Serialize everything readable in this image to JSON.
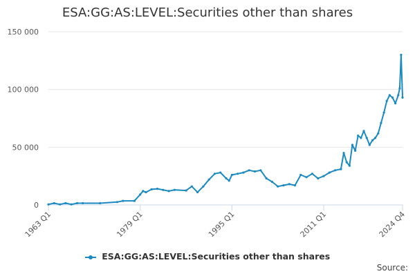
{
  "title": "ESA:GG:AS:LEVEL:Securities other than shares",
  "legend_label": "ESA:GG:AS:LEVEL:Securities other than shares",
  "source_label": "Source:",
  "colors": {
    "series": "#1b8ac2",
    "grid": "#e6e6e6",
    "axis": "#ccd6eb"
  },
  "chart_data": {
    "type": "line",
    "title": "ESA:GG:AS:LEVEL:Securities other than shares",
    "xlabel": "",
    "ylabel": "",
    "x_tick_labels": [
      "1963 Q1",
      "1979 Q1",
      "1995 Q1",
      "2011 Q1",
      "2024 Q4"
    ],
    "y_tick_labels": [
      "0",
      "50 000",
      "100 000",
      "150 000"
    ],
    "ylim": [
      0,
      150000
    ],
    "xlim": [
      "1963 Q1",
      "2024 Q4"
    ],
    "grid": true,
    "legend_position": "bottom",
    "series": [
      {
        "name": "ESA:GG:AS:LEVEL:Securities other than shares",
        "points": [
          [
            "1963 Q1",
            500
          ],
          [
            "1964 Q1",
            1500
          ],
          [
            "1965 Q1",
            500
          ],
          [
            "1966 Q1",
            1500
          ],
          [
            "1967 Q1",
            500
          ],
          [
            "1968 Q1",
            1500
          ],
          [
            "1969 Q1",
            1500
          ],
          [
            "1972 Q1",
            1500
          ],
          [
            "1975 Q1",
            2500
          ],
          [
            "1976 Q1",
            3500
          ],
          [
            "1978 Q1",
            3500
          ],
          [
            "1979 Q1",
            9000
          ],
          [
            "1979 Q3",
            12000
          ],
          [
            "1980 Q1",
            11000
          ],
          [
            "1981 Q1",
            13500
          ],
          [
            "1982 Q1",
            14000
          ],
          [
            "1983 Q1",
            13000
          ],
          [
            "1984 Q1",
            12000
          ],
          [
            "1985 Q1",
            13000
          ],
          [
            "1987 Q1",
            12500
          ],
          [
            "1988 Q1",
            16000
          ],
          [
            "1989 Q1",
            11000
          ],
          [
            "1990 Q1",
            16000
          ],
          [
            "1991 Q1",
            22000
          ],
          [
            "1992 Q1",
            27000
          ],
          [
            "1993 Q1",
            28000
          ],
          [
            "1994 Q1",
            23000
          ],
          [
            "1994 Q3",
            21000
          ],
          [
            "1995 Q1",
            26000
          ],
          [
            "1996 Q1",
            27000
          ],
          [
            "1997 Q1",
            28000
          ],
          [
            "1998 Q1",
            30000
          ],
          [
            "1999 Q1",
            29000
          ],
          [
            "2000 Q1",
            30000
          ],
          [
            "2001 Q1",
            23000
          ],
          [
            "2002 Q1",
            20000
          ],
          [
            "2003 Q1",
            16000
          ],
          [
            "2004 Q1",
            17000
          ],
          [
            "2005 Q1",
            18000
          ],
          [
            "2006 Q1",
            17000
          ],
          [
            "2007 Q1",
            26000
          ],
          [
            "2008 Q1",
            24000
          ],
          [
            "2009 Q1",
            27000
          ],
          [
            "2010 Q1",
            23000
          ],
          [
            "2011 Q1",
            25000
          ],
          [
            "2012 Q1",
            28000
          ],
          [
            "2013 Q1",
            30000
          ],
          [
            "2014 Q1",
            31000
          ],
          [
            "2014 Q3",
            45000
          ],
          [
            "2015 Q1",
            37000
          ],
          [
            "2015 Q3",
            34000
          ],
          [
            "2016 Q1",
            52000
          ],
          [
            "2016 Q3",
            47000
          ],
          [
            "2017 Q1",
            60000
          ],
          [
            "2017 Q3",
            58000
          ],
          [
            "2018 Q1",
            64000
          ],
          [
            "2018 Q3",
            58000
          ],
          [
            "2019 Q1",
            52000
          ],
          [
            "2019 Q3",
            56000
          ],
          [
            "2020 Q1",
            58000
          ],
          [
            "2020 Q3",
            62000
          ],
          [
            "2021 Q1",
            71000
          ],
          [
            "2021 Q3",
            80000
          ],
          [
            "2022 Q1",
            90000
          ],
          [
            "2022 Q3",
            95000
          ],
          [
            "2023 Q1",
            93000
          ],
          [
            "2023 Q3",
            88000
          ],
          [
            "2024 Q1",
            95000
          ],
          [
            "2024 Q2",
            101000
          ],
          [
            "2024 Q3",
            130000
          ],
          [
            "2024 Q4",
            93000
          ]
        ]
      }
    ]
  }
}
